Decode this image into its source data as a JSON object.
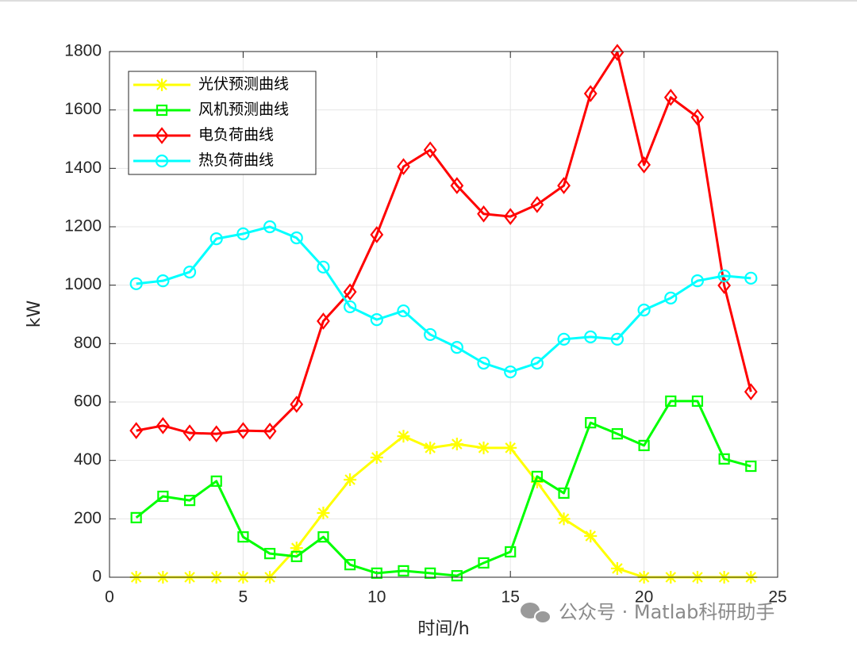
{
  "chart_data": {
    "type": "line",
    "xlabel": "时间/h",
    "ylabel": "kW",
    "x": [
      1,
      2,
      3,
      4,
      5,
      6,
      7,
      8,
      9,
      10,
      11,
      12,
      13,
      14,
      15,
      16,
      17,
      18,
      19,
      20,
      21,
      22,
      23,
      24
    ],
    "xlim": [
      0,
      25
    ],
    "xticks": [
      0,
      5,
      10,
      15,
      20,
      25
    ],
    "ylim": [
      0,
      1800
    ],
    "yticks": [
      0,
      200,
      400,
      600,
      800,
      1000,
      1200,
      1400,
      1600,
      1800
    ],
    "grid": true,
    "legend_loc": "northwest",
    "series": [
      {
        "name": "光伏预测曲线",
        "color": "#ffff00",
        "marker": "star",
        "values": [
          0,
          0,
          0,
          0,
          0,
          0,
          100,
          220,
          334,
          410,
          483,
          443,
          456,
          443,
          443,
          326,
          200,
          141,
          30,
          0,
          0,
          0,
          0,
          0
        ]
      },
      {
        "name": "风机预测曲线",
        "color": "#00ff00",
        "marker": "square",
        "values": [
          204,
          277,
          263,
          329,
          138,
          81,
          71,
          138,
          43,
          14,
          22,
          14,
          5,
          49,
          87,
          345,
          288,
          529,
          491,
          451,
          603,
          603,
          405,
          380
        ]
      },
      {
        "name": "电负荷曲线",
        "color": "#ff0000",
        "marker": "diamond",
        "values": [
          502,
          519,
          494,
          491,
          502,
          500,
          592,
          877,
          977,
          1173,
          1406,
          1463,
          1341,
          1244,
          1235,
          1276,
          1341,
          1656,
          1797,
          1412,
          1643,
          1575,
          999,
          635
        ]
      },
      {
        "name": "热负荷曲线",
        "color": "#00ffff",
        "marker": "circle",
        "values": [
          1005,
          1015,
          1045,
          1159,
          1176,
          1200,
          1162,
          1062,
          926,
          882,
          912,
          831,
          787,
          733,
          703,
          733,
          815,
          823,
          815,
          915,
          956,
          1015,
          1032,
          1024
        ]
      }
    ],
    "watermark": "公众号 · Matlab科研助手"
  }
}
